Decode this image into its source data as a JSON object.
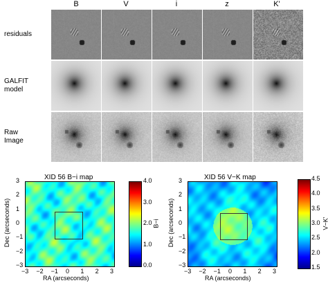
{
  "grid": {
    "bands": [
      "B",
      "V",
      "i",
      "z",
      "K'"
    ],
    "rows": [
      {
        "label_lines": [
          "residuals"
        ],
        "kind": "residual"
      },
      {
        "label_lines": [
          "GALFIT",
          "model"
        ],
        "kind": "model"
      },
      {
        "label_lines": [
          "Raw",
          "Image"
        ],
        "kind": "raw"
      }
    ]
  },
  "maps": [
    {
      "title": "XID 56 B−i map",
      "xlabel": "RA (arcseconds)",
      "ylabel": "Dec (arcseconds)",
      "x_ticks": [
        "−3",
        "−2",
        "−1",
        "0",
        "1",
        "2",
        "3"
      ],
      "y_ticks": [
        "3",
        "2",
        "1",
        "0",
        "−1",
        "−2",
        "−3"
      ],
      "colorbar_label": "B−i",
      "colorbar_ticks": [
        "4.0",
        "3.0",
        "2.0",
        "1.0",
        "0.0"
      ],
      "colorbar_range": [
        0.0,
        4.0
      ]
    },
    {
      "title": "XID 56 V−K map",
      "xlabel": "RA (arcseconds)",
      "ylabel": "Dec (arcseconds)",
      "x_ticks": [
        "−3",
        "−2",
        "−1",
        "0",
        "1",
        "2",
        "3"
      ],
      "y_ticks": [
        "3",
        "2",
        "1",
        "0",
        "−1",
        "−2",
        "−3"
      ],
      "colorbar_label": "V−K'",
      "colorbar_ticks": [
        "4.5",
        "4.0",
        "3.5",
        "3.0",
        "2.5",
        "2.0",
        "1.5"
      ],
      "colorbar_range": [
        1.5,
        4.5
      ]
    }
  ],
  "colors": {
    "colormap": [
      "#00008f",
      "#0000ff",
      "#0080ff",
      "#00ffff",
      "#80ff80",
      "#ffff00",
      "#ff8000",
      "#ff0000",
      "#800000"
    ]
  }
}
